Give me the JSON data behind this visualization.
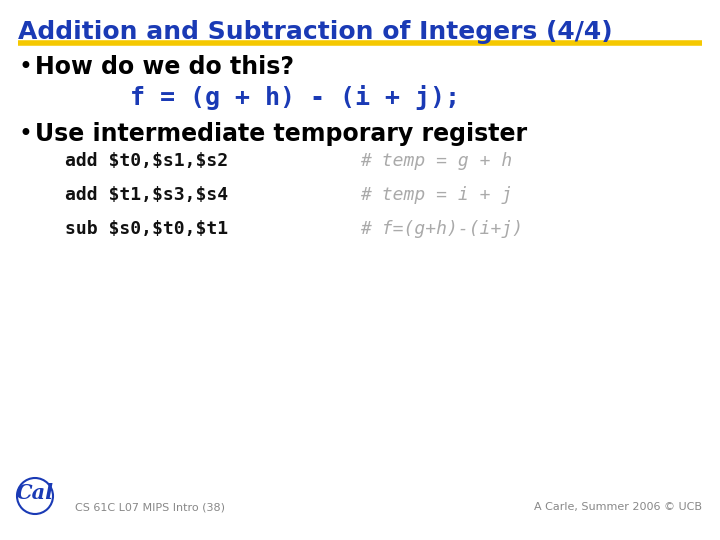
{
  "title": "Addition and Subtraction of Integers (4/4)",
  "title_color": "#1a3ab5",
  "title_fontsize": 18,
  "underline_color": "#f5c800",
  "bg_color": "#ffffff",
  "bullet1": "How do we do this?",
  "bullet1_color": "#000000",
  "bullet1_fontsize": 17,
  "code_line": "f = (g + h) - (i + j);",
  "code_line_color": "#1a3ab5",
  "code_line_fontsize": 18,
  "bullet2": "Use intermediate temporary register",
  "bullet2_color": "#000000",
  "bullet2_fontsize": 17,
  "asm_lines": [
    [
      "add $t0,$s1,$s2",
      "# temp = g + h"
    ],
    [
      "add $t1,$s3,$s4",
      "# temp = i + j"
    ],
    [
      "sub $s0,$t0,$t1",
      "# f=(g+h)-(i+j)"
    ]
  ],
  "asm_color": "#111111",
  "comment_color": "#aaaaaa",
  "asm_fontsize": 13,
  "footer_left": "CS 61C L07 MIPS Intro (38)",
  "footer_right": "A Carle, Summer 2006 © UCB",
  "footer_color": "#888888",
  "footer_fontsize": 8
}
